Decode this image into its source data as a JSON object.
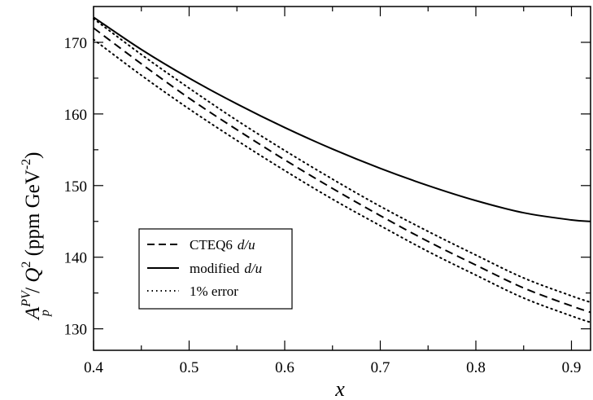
{
  "chart_data": {
    "type": "line",
    "xlabel": "x",
    "ylabel": {
      "a": "A",
      "a_sup": "PV",
      "a_sub": "p",
      "slash": " / ",
      "q": "Q",
      "q_sup": "2",
      "unit": " (ppm GeV",
      "unit_sup": "-2",
      "unit_close": ")"
    },
    "xlim": [
      0.4,
      0.92
    ],
    "ylim": [
      127,
      175
    ],
    "x_ticks_major": [
      "0.4",
      "0.5",
      "0.6",
      "0.7",
      "0.8",
      "0.9"
    ],
    "y_ticks_major": [
      "130",
      "140",
      "150",
      "160",
      "170"
    ],
    "grid": false,
    "legend_position": "lower-left",
    "legend": [
      {
        "label": "CTEQ6",
        "label_italic": "d/u",
        "style": "dashed"
      },
      {
        "label": "modified",
        "label_italic": "d/u",
        "style": "solid"
      },
      {
        "label": "1% error",
        "label_italic": "",
        "style": "dotted"
      }
    ],
    "series": [
      {
        "style": "solid",
        "color": "#000000",
        "x": [
          0.4,
          0.45,
          0.5,
          0.55,
          0.6,
          0.65,
          0.7,
          0.75,
          0.8,
          0.85,
          0.9,
          0.92
        ],
        "y": [
          173.5,
          169.0,
          165.0,
          161.4,
          158.1,
          155.1,
          152.4,
          150.0,
          147.9,
          146.2,
          145.2,
          145.0
        ]
      },
      {
        "style": "dashed",
        "color": "#000000",
        "x": [
          0.4,
          0.45,
          0.5,
          0.55,
          0.6,
          0.65,
          0.7,
          0.75,
          0.8,
          0.85,
          0.9,
          0.92
        ],
        "y": [
          172.0,
          167.0,
          162.2,
          157.8,
          153.6,
          149.6,
          145.8,
          142.2,
          138.9,
          135.7,
          133.2,
          132.3
        ]
      },
      {
        "style": "dotted",
        "color": "#000000",
        "x": [
          0.4,
          0.45,
          0.5,
          0.55,
          0.6,
          0.65,
          0.7,
          0.75,
          0.8,
          0.85,
          0.9,
          0.92
        ],
        "y": [
          173.3,
          168.3,
          163.6,
          159.1,
          154.9,
          150.9,
          147.1,
          143.6,
          140.3,
          137.1,
          134.6,
          133.7
        ]
      },
      {
        "style": "dotted",
        "color": "#000000",
        "x": [
          0.4,
          0.45,
          0.5,
          0.55,
          0.6,
          0.65,
          0.7,
          0.75,
          0.8,
          0.85,
          0.9,
          0.92
        ],
        "y": [
          170.4,
          165.4,
          160.7,
          156.3,
          152.1,
          148.1,
          144.4,
          140.8,
          137.5,
          134.3,
          131.8,
          130.9
        ]
      }
    ]
  }
}
